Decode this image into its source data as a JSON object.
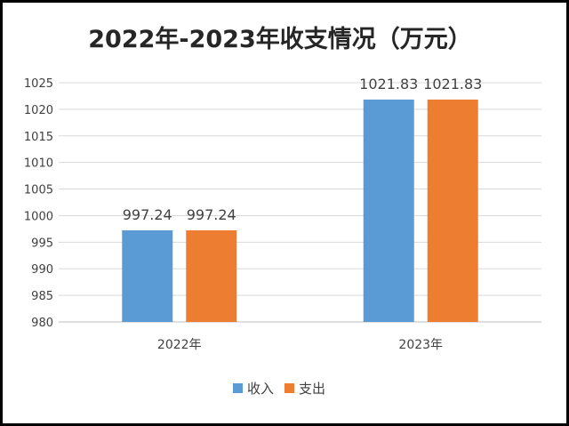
{
  "chart_data": {
    "type": "bar",
    "title": "2022年-2023年收支情况（万元）",
    "categories": [
      "2022年",
      "2023年"
    ],
    "series": [
      {
        "name": "收入",
        "values": [
          997.24,
          1021.83
        ],
        "labels": [
          "997.24",
          "1021.83"
        ]
      },
      {
        "name": "支出",
        "values": [
          997.24,
          1021.83
        ],
        "labels": [
          "997.24",
          "1021.83"
        ]
      }
    ],
    "ylim": [
      980,
      1025
    ],
    "yticks": [
      "980",
      "985",
      "990",
      "995",
      "1000",
      "1005",
      "1010",
      "1015",
      "1020",
      "1025"
    ],
    "grid": true,
    "legend": "bottom"
  },
  "colors": {
    "series": [
      "#5B9BD5",
      "#ED7D31"
    ],
    "grid": "#D9D9D9",
    "axis": "#BFBFBF",
    "text": "#404040",
    "title": "#262626"
  }
}
